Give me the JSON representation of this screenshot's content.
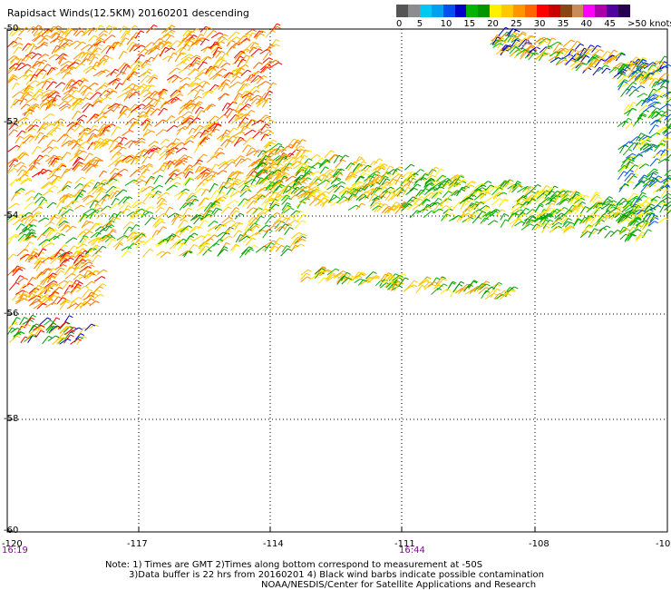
{
  "title": "Rapidsact Winds(12.5KM) 20160201 descending",
  "color_scale": {
    "colors": [
      "#555555",
      "#8c8c8c",
      "#00c8f0",
      "#00a0f0",
      "#0050f0",
      "#0000c8",
      "#00b400",
      "#009600",
      "#fff000",
      "#ffc800",
      "#ff9600",
      "#ff6400",
      "#ff0000",
      "#c80000",
      "#8b4513",
      "#c88c5a",
      "#ff00ff",
      "#aa00aa",
      "#5000a0",
      "#280050"
    ],
    "labels": [
      "0",
      "5",
      "10",
      "15",
      "20",
      "25",
      "30",
      "35",
      "40",
      "45",
      ">50 knots"
    ]
  },
  "map": {
    "y_ticks": [
      "-50",
      "-52",
      "-54",
      "-56",
      "-58",
      "-60"
    ],
    "x_ticks": [
      "-120",
      "-117",
      "-114",
      "-111",
      "-108",
      "-10"
    ],
    "times": [
      "16:19",
      "16:44"
    ]
  },
  "notes": [
    "Note: 1) Times are GMT 2)Times along bottom correspond to measurement at -50S",
    "3)Data buffer is 22 hrs from 20160201 4) Black wind barbs indicate possible contamination",
    "NOAA/NESDIS/Center for Satellite Applications and Research"
  ]
}
